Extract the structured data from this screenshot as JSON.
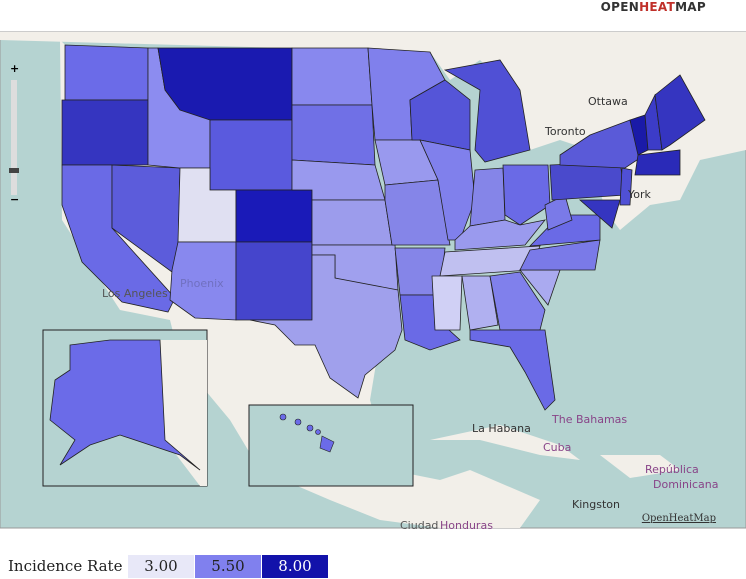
{
  "header": {
    "brand": [
      "OPEN",
      "HEAT",
      "MAP"
    ]
  },
  "zoom": {
    "plus": "+",
    "minus": "−"
  },
  "map_labels": [
    "Ottawa",
    "Toronto",
    "York",
    "Los Angeles",
    "Phoenix",
    "The Bahamas",
    "La Habana",
    "Cuba",
    "República",
    "Dominicana",
    "Kingston",
    "Ciudad",
    "Honduras"
  ],
  "attribution": "OpenHeatMap",
  "legend": {
    "title": "Incidence Rate",
    "items": [
      "3.00",
      "5.50",
      "8.00"
    ]
  }
}
